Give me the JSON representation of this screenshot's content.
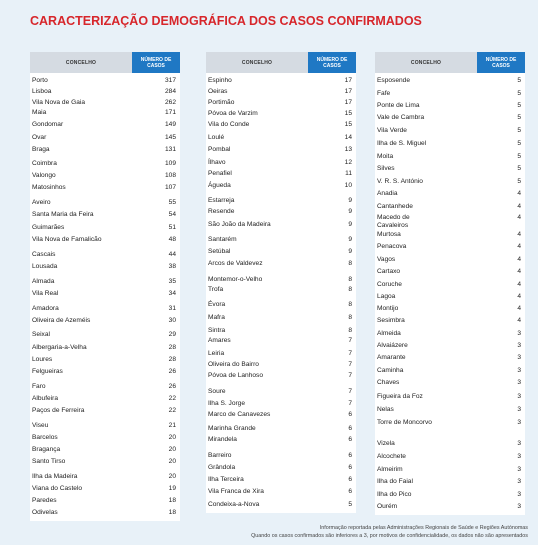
{
  "title": "CARACTERIZAÇÃO DEMOGRÁFICA DOS CASOS CONFIRMADOS",
  "header": {
    "concelho": "CONCELHO",
    "numero": "NÚMERO DE CASOS"
  },
  "columns": [
    [
      {
        "name": "Porto",
        "value": "317"
      },
      {
        "name": "Lisboa",
        "value": "284"
      },
      {
        "name": "Vila Nova de Gaia",
        "value": "262"
      },
      {
        "name": "Maia",
        "value": "171"
      },
      {
        "name": "Gondomar",
        "value": "149"
      },
      {
        "name": "Ovar",
        "value": "145"
      },
      {
        "name": "Braga",
        "value": "131"
      },
      {
        "name": "Coimbra",
        "value": "109"
      },
      {
        "name": "Valongo",
        "value": "108"
      },
      {
        "name": "Matosinhos",
        "value": "107"
      },
      {
        "name": "Aveiro",
        "value": "55"
      },
      {
        "name": "Santa Maria da Feira",
        "value": "54"
      },
      {
        "name": "Guimarães",
        "value": "51"
      },
      {
        "name": "Vila Nova de Famalicão",
        "value": "48"
      },
      {
        "name": "Cascais",
        "value": "44"
      },
      {
        "name": "Lousada",
        "value": "38"
      },
      {
        "name": "Almada",
        "value": "35"
      },
      {
        "name": "Vila Real",
        "value": "34"
      },
      {
        "name": "Amadora",
        "value": "31"
      },
      {
        "name": "Oliveira de Azeméis",
        "value": "30"
      },
      {
        "name": "Seixal",
        "value": "29"
      },
      {
        "name": "Albergaria-a-Velha",
        "value": "28"
      },
      {
        "name": "Loures",
        "value": "28"
      },
      {
        "name": "Felgueiras",
        "value": "26"
      },
      {
        "name": "Faro",
        "value": "26"
      },
      {
        "name": "Albufeira",
        "value": "22"
      },
      {
        "name": "Paços de Ferreira",
        "value": "22"
      },
      {
        "name": "Viseu",
        "value": "21"
      },
      {
        "name": "Barcelos",
        "value": "20"
      },
      {
        "name": "Bragança",
        "value": "20"
      },
      {
        "name": "Santo Tirso",
        "value": "20"
      },
      {
        "name": "Ilha da Madeira",
        "value": "20"
      },
      {
        "name": "Viana do Castelo",
        "value": "19"
      },
      {
        "name": "Paredes",
        "value": "18"
      },
      {
        "name": "Odivelas",
        "value": "18"
      }
    ],
    [
      {
        "name": "Espinho",
        "value": "17"
      },
      {
        "name": "Oeiras",
        "value": "17"
      },
      {
        "name": "Portimão",
        "value": "17"
      },
      {
        "name": "Póvoa de Varzim",
        "value": "15"
      },
      {
        "name": "Vila do Conde",
        "value": "15"
      },
      {
        "name": "Loulé",
        "value": "14"
      },
      {
        "name": "Pombal",
        "value": "13"
      },
      {
        "name": "Ílhavo",
        "value": "12"
      },
      {
        "name": "Penafiel",
        "value": "11"
      },
      {
        "name": "Águeda",
        "value": "10"
      },
      {
        "name": "Estarreja",
        "value": "9"
      },
      {
        "name": "Resende",
        "value": "9"
      },
      {
        "name": "São João da Madeira",
        "value": "9"
      },
      {
        "name": "Santarém",
        "value": "9"
      },
      {
        "name": "Setúbal",
        "value": "9"
      },
      {
        "name": "Arcos de Valdevez",
        "value": "8"
      },
      {
        "name": "Montemor-o-Velho",
        "value": "8"
      },
      {
        "name": "Trofa",
        "value": "8"
      },
      {
        "name": "Évora",
        "value": "8"
      },
      {
        "name": "Mafra",
        "value": "8"
      },
      {
        "name": "Sintra",
        "value": "8"
      },
      {
        "name": "Amares",
        "value": "7"
      },
      {
        "name": "Leiria",
        "value": "7"
      },
      {
        "name": "Oliveira do Bairro",
        "value": "7"
      },
      {
        "name": "Póvoa de Lanhoso",
        "value": "7"
      },
      {
        "name": "Soure",
        "value": "7"
      },
      {
        "name": "Ilha S. Jorge",
        "value": "7"
      },
      {
        "name": "Marco de Canavezes",
        "value": "6"
      },
      {
        "name": "Marinha Grande",
        "value": "6"
      },
      {
        "name": "Mirandela",
        "value": "6"
      },
      {
        "name": "Barreiro",
        "value": "6"
      },
      {
        "name": "Grândola",
        "value": "6"
      },
      {
        "name": "Ilha Terceira",
        "value": "6"
      },
      {
        "name": "Vila Franca de Xira",
        "value": "6"
      },
      {
        "name": "Condeixa-a-Nova",
        "value": "5"
      }
    ],
    [
      {
        "name": "Esposende",
        "value": "5"
      },
      {
        "name": "Fafe",
        "value": "5"
      },
      {
        "name": "Ponte de Lima",
        "value": "5"
      },
      {
        "name": "Vale de Cambra",
        "value": "5"
      },
      {
        "name": "Vila Verde",
        "value": "5"
      },
      {
        "name": "Ilha de S. Miguel",
        "value": "5"
      },
      {
        "name": "Moita",
        "value": "5"
      },
      {
        "name": "Silves",
        "value": "5"
      },
      {
        "name": "V. R. S. António",
        "value": "5"
      },
      {
        "name": "Anadia",
        "value": "4"
      },
      {
        "name": "Cantanhede",
        "value": "4"
      },
      {
        "name": "Macedo de Cavaleiros",
        "value": "4"
      },
      {
        "name": "Murtosa",
        "value": "4"
      },
      {
        "name": "Penacova",
        "value": "4"
      },
      {
        "name": "Vagos",
        "value": "4"
      },
      {
        "name": "Cartaxo",
        "value": "4"
      },
      {
        "name": "Coruche",
        "value": "4"
      },
      {
        "name": "Lagoa",
        "value": "4"
      },
      {
        "name": "Montijo",
        "value": "4"
      },
      {
        "name": "Sesimbra",
        "value": "4"
      },
      {
        "name": "Almeida",
        "value": "3"
      },
      {
        "name": "Alvaiázere",
        "value": "3"
      },
      {
        "name": "Amarante",
        "value": "3"
      },
      {
        "name": "Caminha",
        "value": "3"
      },
      {
        "name": "Chaves",
        "value": "3"
      },
      {
        "name": "Figueira da Foz",
        "value": "3"
      },
      {
        "name": "Nelas",
        "value": "3"
      },
      {
        "name": "Torre de Moncorvo",
        "value": "3"
      },
      {
        "name": "Vizela",
        "value": "3"
      },
      {
        "name": "Alcochete",
        "value": "3"
      },
      {
        "name": "Almeirim",
        "value": "3"
      },
      {
        "name": "Ilha do Faial",
        "value": "3"
      },
      {
        "name": "Ilha do Pico",
        "value": "3"
      },
      {
        "name": "Ourém",
        "value": "3"
      }
    ]
  ],
  "footer": {
    "line1": "Informação reportada pelas Administrações Regionais de Saúde e Regiões Autónomas",
    "line2": "Quando os casos confirmados são inferiores a 3, por motivos de confidencialidade, os dados não são apresentados"
  }
}
